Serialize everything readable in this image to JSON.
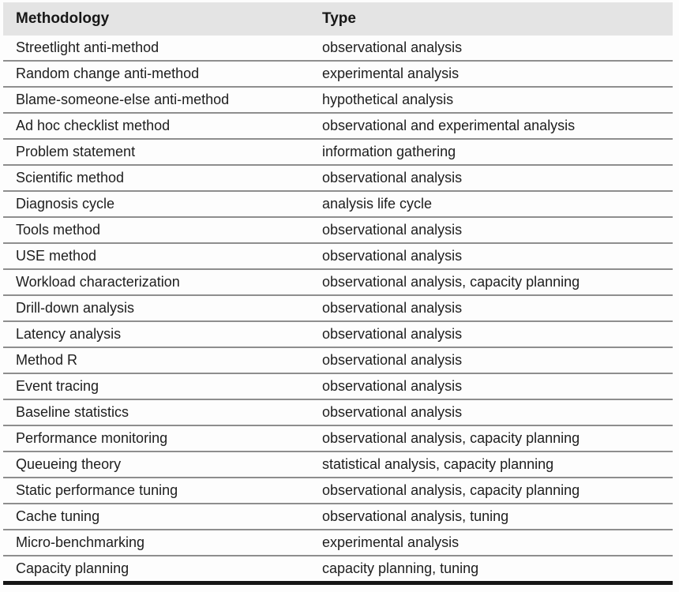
{
  "table": {
    "columns": [
      "Methodology",
      "Type"
    ],
    "rows": [
      {
        "methodology": "Streetlight anti-method",
        "type": "observational analysis"
      },
      {
        "methodology": "Random change anti-method",
        "type": "experimental analysis"
      },
      {
        "methodology": "Blame-someone-else anti-method",
        "type": "hypothetical analysis"
      },
      {
        "methodology": "Ad hoc checklist method",
        "type": "observational and experimental analysis"
      },
      {
        "methodology": "Problem statement",
        "type": "information gathering"
      },
      {
        "methodology": "Scientific method",
        "type": "observational analysis"
      },
      {
        "methodology": "Diagnosis cycle",
        "type": "analysis life cycle"
      },
      {
        "methodology": "Tools method",
        "type": "observational analysis"
      },
      {
        "methodology": "USE method",
        "type": "observational analysis"
      },
      {
        "methodology": "Workload characterization",
        "type": "observational analysis, capacity planning"
      },
      {
        "methodology": "Drill-down analysis",
        "type": "observational analysis"
      },
      {
        "methodology": "Latency analysis",
        "type": "observational analysis"
      },
      {
        "methodology": "Method R",
        "type": "observational analysis"
      },
      {
        "methodology": "Event tracing",
        "type": "observational analysis"
      },
      {
        "methodology": "Baseline statistics",
        "type": "observational analysis"
      },
      {
        "methodology": "Performance monitoring",
        "type": "observational analysis, capacity planning"
      },
      {
        "methodology": "Queueing theory",
        "type": "statistical analysis, capacity planning"
      },
      {
        "methodology": "Static performance tuning",
        "type": "observational analysis, capacity planning"
      },
      {
        "methodology": "Cache tuning",
        "type": "observational analysis, tuning"
      },
      {
        "methodology": "Micro-benchmarking",
        "type": "experimental analysis"
      },
      {
        "methodology": "Capacity planning",
        "type": "capacity planning, tuning"
      }
    ]
  },
  "colors": {
    "header_background": "#e4e4e4",
    "row_separator": "#8e8e8e",
    "bottom_border": "#161616",
    "text": "#1e1e1e",
    "page_background": "#fdfdfd"
  }
}
